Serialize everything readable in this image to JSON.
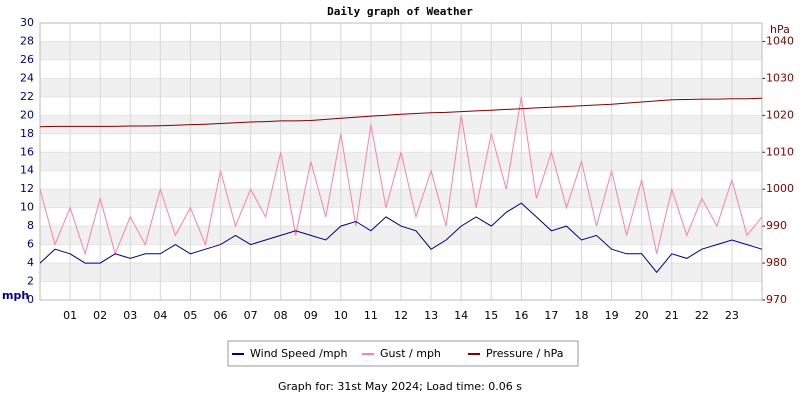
{
  "chart_data": {
    "type": "line",
    "title": "Daily graph of Weather",
    "y_label": "mph",
    "y2_label": "hPa",
    "footer": "Graph for: 31st May 2024; Load time: 0.06 s",
    "x": [
      0,
      0.5,
      1,
      1.5,
      2,
      2.5,
      3,
      3.5,
      4,
      4.5,
      5,
      5.5,
      6,
      6.5,
      7,
      7.5,
      8,
      8.5,
      9,
      9.5,
      10,
      10.5,
      11,
      11.5,
      12,
      12.5,
      13,
      13.5,
      14,
      14.5,
      15,
      15.5,
      16,
      16.5,
      17,
      17.5,
      18,
      18.5,
      19,
      19.5,
      20,
      20.5,
      21,
      21.5,
      22,
      22.5,
      23,
      23.5,
      24
    ],
    "xlim": [
      0,
      24
    ],
    "xticks": [
      {
        "value": 1,
        "label": "01"
      },
      {
        "value": 2,
        "label": "02"
      },
      {
        "value": 3,
        "label": "03"
      },
      {
        "value": 4,
        "label": "04"
      },
      {
        "value": 5,
        "label": "05"
      },
      {
        "value": 6,
        "label": "06"
      },
      {
        "value": 7,
        "label": "07"
      },
      {
        "value": 8,
        "label": "08"
      },
      {
        "value": 9,
        "label": "09"
      },
      {
        "value": 10,
        "label": "10"
      },
      {
        "value": 11,
        "label": "11"
      },
      {
        "value": 12,
        "label": "12"
      },
      {
        "value": 13,
        "label": "13"
      },
      {
        "value": 14,
        "label": "14"
      },
      {
        "value": 15,
        "label": "15"
      },
      {
        "value": 16,
        "label": "16"
      },
      {
        "value": 17,
        "label": "17"
      },
      {
        "value": 18,
        "label": "18"
      },
      {
        "value": 19,
        "label": "19"
      },
      {
        "value": 20,
        "label": "20"
      },
      {
        "value": 21,
        "label": "21"
      },
      {
        "value": 22,
        "label": "22"
      },
      {
        "value": 23,
        "label": "23"
      }
    ],
    "ylim": [
      0,
      30
    ],
    "yticks": [
      0,
      2,
      4,
      6,
      8,
      10,
      12,
      14,
      16,
      18,
      20,
      22,
      24,
      26,
      28,
      30
    ],
    "y2lim": [
      970,
      1045
    ],
    "y2ticks": [
      970,
      980,
      990,
      1000,
      1010,
      1020,
      1030,
      1040
    ],
    "grid": true,
    "legend": "bottom",
    "series": [
      {
        "name": "Wind Speed /mph",
        "color": "#000080",
        "values": [
          4,
          5.5,
          5,
          4,
          4,
          5,
          4.5,
          5,
          5,
          6,
          5,
          5.5,
          6,
          7,
          6,
          6.5,
          7,
          7.5,
          7,
          6.5,
          8,
          8.5,
          7.5,
          9,
          8,
          7.5,
          5.5,
          6.5,
          8,
          9,
          8,
          9.5,
          10.5,
          9,
          7.5,
          8,
          6.5,
          7,
          5.5,
          5,
          5,
          3,
          5,
          4.5,
          5.5,
          6,
          6.5,
          6,
          5.5
        ]
      },
      {
        "name": "Gust / mph",
        "color": "#ff80a8",
        "values": [
          12,
          6,
          10,
          5,
          11,
          5,
          9,
          6,
          12,
          7,
          10,
          6,
          14,
          8,
          12,
          9,
          16,
          7,
          15,
          9,
          18,
          8,
          19,
          10,
          16,
          9,
          14,
          8,
          20,
          10,
          18,
          12,
          22,
          11,
          16,
          10,
          15,
          8,
          14,
          7,
          13,
          5,
          12,
          7,
          11,
          8,
          13,
          7,
          9
        ]
      },
      {
        "name": "Pressure / hPa",
        "color": "#800000",
        "axis": "y2",
        "values": [
          1016.9,
          1017,
          1017,
          1017,
          1017,
          1017,
          1017.1,
          1017.1,
          1017.2,
          1017.3,
          1017.5,
          1017.6,
          1017.8,
          1018,
          1018.2,
          1018.3,
          1018.5,
          1018.5,
          1018.6,
          1018.9,
          1019.2,
          1019.5,
          1019.8,
          1020,
          1020.3,
          1020.5,
          1020.7,
          1020.8,
          1021,
          1021.2,
          1021.4,
          1021.6,
          1021.8,
          1022,
          1022.2,
          1022.4,
          1022.6,
          1022.8,
          1023,
          1023.3,
          1023.6,
          1023.9,
          1024.2,
          1024.3,
          1024.4,
          1024.4,
          1024.5,
          1024.5,
          1024.6
        ]
      }
    ]
  }
}
